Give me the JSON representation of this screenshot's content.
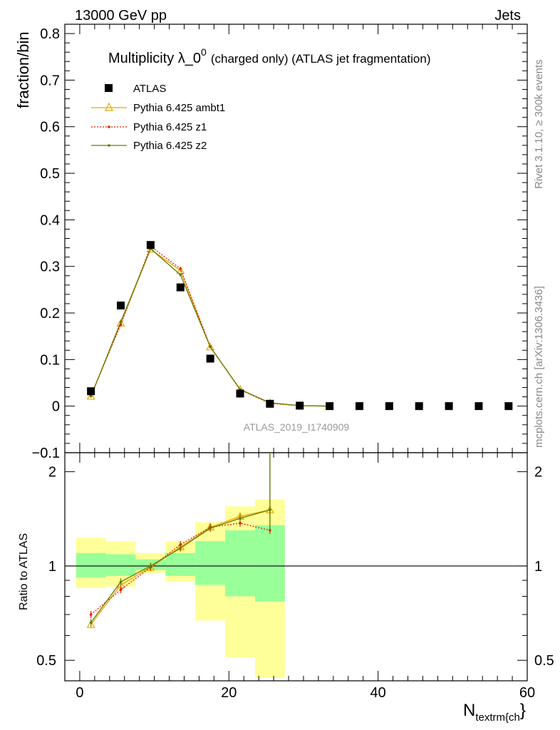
{
  "header": {
    "left": "13000 GeV pp",
    "right": "Jets"
  },
  "side": {
    "rivet": "Rivet 3.1.10, ≥ 300k events",
    "mcplots": "mcplots.cern.ch [arXiv:1306.3436]"
  },
  "colors": {
    "atlas": "#000000",
    "ambt1": "#e6a800",
    "z1": "#e02000",
    "z2": "#6b7a00",
    "band_inner": "#99ff99",
    "band_outer": "#ffff99",
    "watermark": "#999999"
  },
  "chart_data": [
    {
      "type": "scatter",
      "title_main": "Multiplicity λ_0",
      "title_sup": "0",
      "title_tail": "(charged only) (ATLAS jet fragmentation)",
      "ylabel": "fraction/bin",
      "watermark": "ATLAS_2019_I1740909",
      "xlim": [
        -2,
        60
      ],
      "ylim": [
        -0.1,
        0.82
      ],
      "yticks": [
        -0.1,
        0,
        0.1,
        0.2,
        0.3,
        0.4,
        0.5,
        0.6,
        0.7,
        0.8
      ],
      "ytick_labels": [
        "−0.1",
        "0",
        "0.1",
        "0.2",
        "0.3",
        "0.4",
        "0.5",
        "0.6",
        "0.7",
        "0.8"
      ],
      "legend_position": "top-left",
      "series": [
        {
          "name": "ATLAS",
          "marker": "square",
          "x": [
            1.5,
            5.5,
            9.5,
            13.5,
            17.5,
            21.5,
            25.5,
            29.5,
            33.5,
            37.5,
            41.5,
            45.5,
            49.5,
            53.5,
            57.5
          ],
          "y": [
            0.032,
            0.216,
            0.346,
            0.255,
            0.102,
            0.027,
            0.005,
            0.001,
            0.0,
            0.0,
            0.0,
            0.0,
            0.0,
            0.0,
            0.0
          ]
        },
        {
          "name": "Pythia 6.425 ambt1",
          "marker": "triangle",
          "x": [
            1.5,
            5.5,
            9.5,
            13.5,
            17.5,
            21.5,
            25.5,
            29.5,
            33.5
          ],
          "y": [
            0.021,
            0.178,
            0.337,
            0.291,
            0.127,
            0.036,
            0.007,
            0.001,
            0.0
          ]
        },
        {
          "name": "Pythia 6.425 z1",
          "marker": "dot",
          "x": [
            1.5,
            5.5,
            9.5,
            13.5,
            17.5,
            21.5,
            25.5,
            29.5,
            33.5
          ],
          "y": [
            0.023,
            0.175,
            0.343,
            0.295,
            0.128,
            0.035,
            0.006,
            0.001,
            0.0
          ]
        },
        {
          "name": "Pythia 6.425 z2",
          "marker": "dot",
          "x": [
            1.5,
            5.5,
            9.5,
            13.5,
            17.5,
            21.5,
            25.5,
            29.5,
            33.5
          ],
          "y": [
            0.021,
            0.181,
            0.338,
            0.282,
            0.127,
            0.036,
            0.007,
            0.001,
            0.0
          ]
        }
      ]
    },
    {
      "type": "line",
      "ylabel": "Ratio to ATLAS",
      "xlabel_main": "N",
      "xlabel_sub": "textrm{ch",
      "xlabel_tail": "}",
      "log_y": true,
      "xlim": [
        -2,
        60
      ],
      "ylim": [
        0.43,
        2.3
      ],
      "xticks": [
        0,
        20,
        40,
        60
      ],
      "xtick_labels": [
        "0",
        "20",
        "40",
        "60"
      ],
      "yticks": [
        0.5,
        1,
        2
      ],
      "ytick_labels": [
        "0.5",
        "1",
        "2"
      ],
      "bands": {
        "edges": [
          -0.5,
          3.5,
          7.5,
          11.5,
          15.5,
          19.5,
          23.5,
          27.5
        ],
        "inner_lo": [
          0.92,
          0.93,
          0.97,
          0.93,
          0.87,
          0.8,
          0.77
        ],
        "inner_hi": [
          1.1,
          1.09,
          1.05,
          1.1,
          1.2,
          1.3,
          1.35
        ],
        "outer_lo": [
          0.85,
          0.86,
          0.95,
          0.89,
          0.67,
          0.51,
          0.44
        ],
        "outer_hi": [
          1.23,
          1.2,
          1.1,
          1.2,
          1.38,
          1.55,
          1.63
        ]
      },
      "series": [
        {
          "name": "Pythia 6.425 ambt1",
          "x": [
            1.5,
            5.5,
            9.5,
            13.5,
            17.5,
            21.5,
            25.5
          ],
          "y": [
            0.65,
            0.87,
            0.99,
            1.15,
            1.33,
            1.44,
            1.51
          ]
        },
        {
          "name": "Pythia 6.425 z1",
          "x": [
            1.5,
            5.5,
            9.5,
            13.5,
            17.5,
            21.5,
            25.5
          ],
          "y": [
            0.7,
            0.84,
            0.99,
            1.17,
            1.33,
            1.37,
            1.3
          ]
        },
        {
          "name": "Pythia 6.425 z2",
          "x": [
            1.5,
            5.5,
            9.5,
            13.5,
            17.5,
            21.5,
            25.5
          ],
          "y": [
            0.66,
            0.89,
            1.0,
            1.14,
            1.32,
            1.42,
            1.51
          ]
        }
      ]
    }
  ]
}
